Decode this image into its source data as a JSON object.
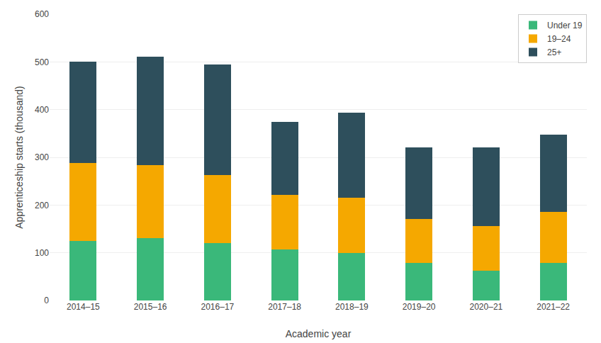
{
  "chart_data": {
    "type": "bar",
    "stacked": true,
    "categories": [
      "2014–15",
      "2015–16",
      "2016–17",
      "2017–18",
      "2018–19",
      "2019–20",
      "2020–21",
      "2021–22"
    ],
    "series": [
      {
        "name": "Under 19",
        "color": "#3ab87a",
        "values": [
          125,
          130,
          120,
          107,
          100,
          78,
          63,
          78
        ]
      },
      {
        "name": "19–24",
        "color": "#f5a800",
        "values": [
          163,
          153,
          143,
          115,
          115,
          93,
          93,
          107
        ]
      },
      {
        "name": "25+",
        "color": "#2e4f5c",
        "values": [
          213,
          228,
          232,
          153,
          178,
          150,
          165,
          163
        ]
      }
    ],
    "xlabel": "Academic year",
    "ylabel": "Apprenticeship starts (thousand)",
    "ylim": [
      0,
      600
    ],
    "yticks": [
      0,
      100,
      200,
      300,
      400,
      500,
      600
    ],
    "grid": true,
    "legend": "upper right"
  }
}
